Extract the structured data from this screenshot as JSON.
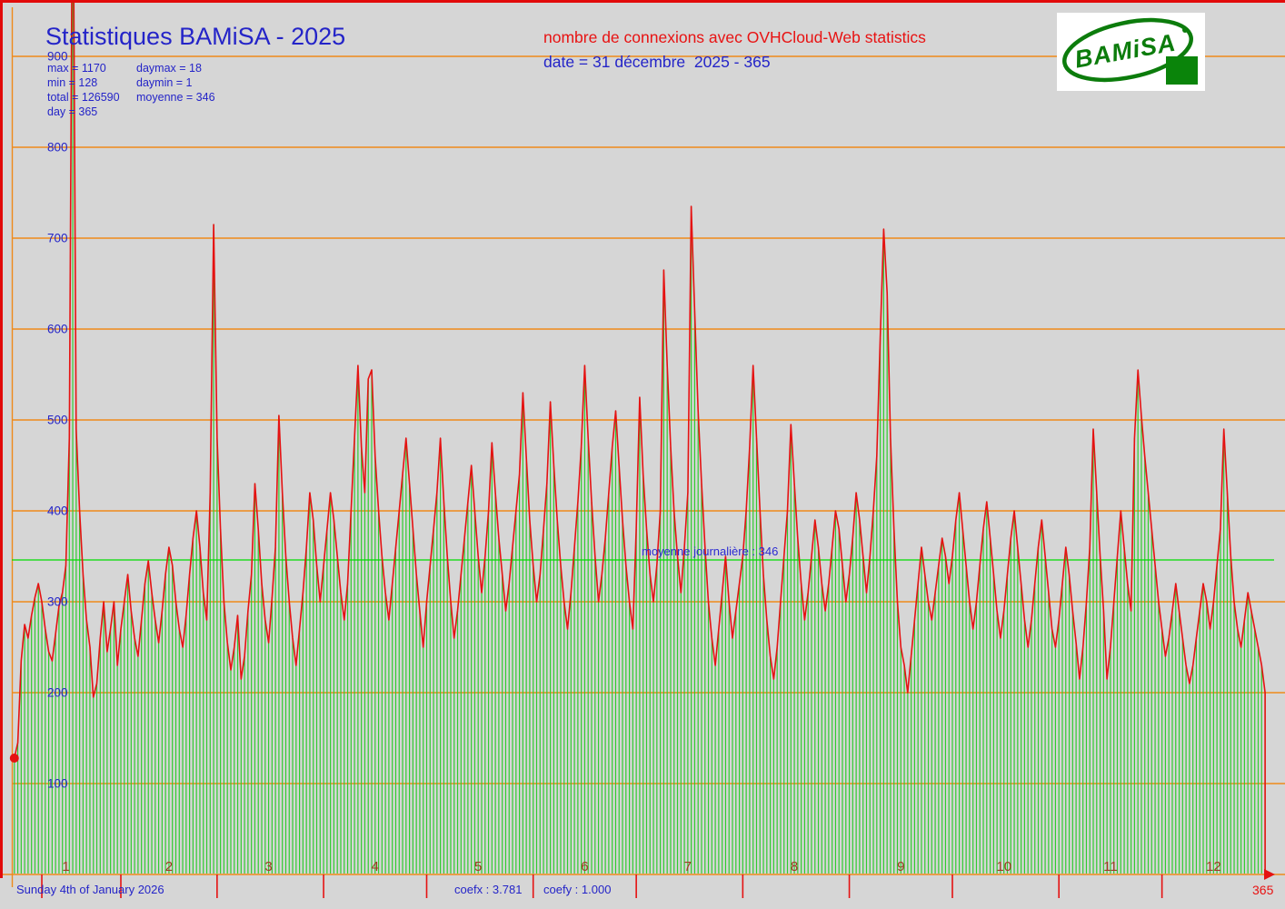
{
  "title": "Statistiques BAMiSA - 2025",
  "header": {
    "subtitle": "nombre de connexions avec OVHCloud-Web statistics",
    "date_line": "date = 31 décembre  2025 - 365"
  },
  "stats": {
    "max": "max = 1170",
    "daymax": "daymax = 18",
    "min": "min = 128",
    "daymin": "daymin = 1",
    "total": "total = 126590",
    "moyenne": "moyenne = 346",
    "day": "day = 365"
  },
  "logo": {
    "text": "BAMiSA"
  },
  "annotations": {
    "average_line": "moyenne journalière : 346"
  },
  "footer": {
    "generated": "Sunday 4th of January 2026",
    "coefx": "coefx : 3.781",
    "coefy": "coefy : 1.000",
    "last_day": "365"
  },
  "colors": {
    "background": "#d6d6d6",
    "grid": "#ef8a1a",
    "bars": "#30cb30",
    "average": "#00dd00",
    "series": "#e51212",
    "text_blue": "#2424c8",
    "text_red": "#e81212",
    "month_label": "#a03a22",
    "logo_green": "#0c7c0c",
    "border_red": "#e20a0a"
  },
  "chart_data": {
    "type": "bar",
    "title": "Statistiques BAMiSA - 2025",
    "ylim": [
      0,
      900
    ],
    "yticks": [
      900,
      800,
      700,
      600,
      500,
      400,
      300,
      200,
      100
    ],
    "xticks": [
      "1",
      "2",
      "3",
      "4",
      "5",
      "6",
      "7",
      "8",
      "9",
      "10",
      "11",
      "12"
    ],
    "xtick_days": [
      16,
      46,
      75,
      106,
      136,
      167,
      197,
      228,
      259,
      289,
      320,
      350
    ],
    "month_start_tick_days": [
      9,
      32,
      60,
      91,
      121,
      152,
      182,
      213,
      244,
      274,
      305,
      335
    ],
    "average": 346,
    "max": 1170,
    "daymax": 18,
    "min": 128,
    "daymin": 1,
    "total": 126590,
    "days": 365,
    "coefx": 3.781,
    "coefy": 1.0,
    "grid_on": true,
    "legend": "none",
    "values": [
      128,
      145,
      235,
      275,
      260,
      285,
      305,
      320,
      300,
      270,
      245,
      235,
      265,
      295,
      310,
      340,
      480,
      1170,
      490,
      400,
      330,
      280,
      250,
      195,
      210,
      260,
      300,
      245,
      270,
      300,
      230,
      270,
      300,
      330,
      290,
      260,
      240,
      280,
      320,
      345,
      310,
      280,
      255,
      290,
      330,
      360,
      340,
      300,
      270,
      250,
      285,
      330,
      370,
      400,
      360,
      310,
      280,
      420,
      715,
      480,
      380,
      300,
      255,
      225,
      250,
      285,
      215,
      240,
      290,
      330,
      430,
      380,
      320,
      280,
      255,
      305,
      360,
      505,
      420,
      350,
      300,
      260,
      230,
      270,
      310,
      360,
      420,
      390,
      340,
      300,
      340,
      380,
      420,
      390,
      350,
      310,
      280,
      320,
      400,
      480,
      560,
      470,
      420,
      545,
      555,
      460,
      400,
      350,
      310,
      280,
      320,
      360,
      400,
      440,
      480,
      430,
      380,
      330,
      290,
      250,
      300,
      340,
      380,
      420,
      480,
      410,
      350,
      300,
      260,
      290,
      330,
      370,
      410,
      450,
      400,
      350,
      310,
      350,
      400,
      475,
      420,
      370,
      330,
      290,
      320,
      360,
      400,
      440,
      530,
      460,
      390,
      340,
      300,
      330,
      380,
      430,
      520,
      450,
      390,
      340,
      300,
      270,
      310,
      360,
      410,
      470,
      560,
      480,
      410,
      350,
      300,
      330,
      370,
      420,
      470,
      510,
      450,
      390,
      340,
      300,
      270,
      380,
      525,
      440,
      380,
      330,
      300,
      340,
      400,
      665,
      560,
      470,
      400,
      350,
      310,
      360,
      420,
      735,
      620,
      510,
      430,
      360,
      300,
      260,
      230,
      270,
      310,
      350,
      300,
      260,
      290,
      320,
      350,
      400,
      470,
      560,
      480,
      400,
      330,
      280,
      240,
      215,
      250,
      300,
      350,
      400,
      495,
      430,
      370,
      320,
      280,
      310,
      350,
      390,
      360,
      320,
      290,
      320,
      360,
      400,
      380,
      340,
      300,
      330,
      370,
      420,
      390,
      350,
      310,
      350,
      400,
      460,
      590,
      710,
      640,
      480,
      380,
      300,
      250,
      230,
      200,
      240,
      280,
      320,
      360,
      330,
      300,
      280,
      310,
      340,
      370,
      350,
      320,
      350,
      390,
      420,
      380,
      340,
      300,
      270,
      300,
      340,
      380,
      410,
      370,
      330,
      290,
      260,
      290,
      330,
      370,
      400,
      360,
      320,
      280,
      250,
      280,
      320,
      360,
      390,
      350,
      310,
      270,
      250,
      280,
      320,
      360,
      330,
      290,
      255,
      215,
      250,
      300,
      360,
      490,
      420,
      350,
      290,
      215,
      250,
      300,
      350,
      400,
      360,
      320,
      290,
      480,
      555,
      505,
      460,
      420,
      380,
      340,
      300,
      270,
      240,
      260,
      290,
      320,
      290,
      260,
      230,
      210,
      230,
      260,
      290,
      320,
      300,
      270,
      300,
      340,
      380,
      490,
      420,
      350,
      300,
      270,
      250,
      280,
      310,
      290,
      270,
      250,
      230,
      200
    ]
  }
}
